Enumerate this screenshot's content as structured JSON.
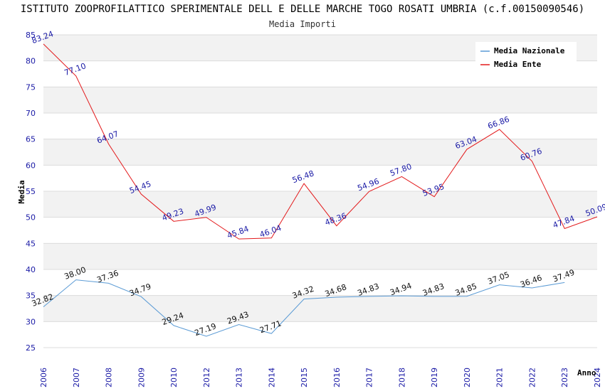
{
  "chart_data": {
    "type": "line",
    "title": "ISTITUTO ZOOPROFILATTICO SPERIMENTALE DELL E DELLE MARCHE TOGO ROSATI UMBRIA (c.f.00150090546)",
    "subtitle": "Media Importi",
    "xlabel": "Anno",
    "ylabel": "Media",
    "ylim": [
      25,
      85
    ],
    "yticks": [
      25,
      30,
      35,
      40,
      45,
      50,
      55,
      60,
      65,
      70,
      75,
      80,
      85
    ],
    "categories": [
      "2006",
      "2007",
      "2008",
      "2009",
      "2010",
      "2012",
      "2013",
      "2014",
      "2015",
      "2016",
      "2017",
      "2018",
      "2019",
      "2020",
      "2021",
      "2022",
      "2023",
      "2024"
    ],
    "series": [
      {
        "name": "Media Nazionale",
        "color": "#5b9bd5",
        "values": [
          32.82,
          38.0,
          37.36,
          34.79,
          29.24,
          27.19,
          29.43,
          27.71,
          34.32,
          34.68,
          34.83,
          34.94,
          34.83,
          34.85,
          37.05,
          36.46,
          37.49,
          null
        ],
        "labels": [
          "32.82",
          "38.00",
          "37.36",
          "34.79",
          "29.24",
          "27.19",
          "29.43",
          "27.71",
          "34.32",
          "34.68",
          "34.83",
          "34.94",
          "34.83",
          "34.85",
          "37.05",
          "36.46",
          "37.49",
          null
        ]
      },
      {
        "name": "Media Ente",
        "color": "#e31a1c",
        "values": [
          83.24,
          77.1,
          64.07,
          54.45,
          49.23,
          49.99,
          45.84,
          46.04,
          56.48,
          48.36,
          54.96,
          57.8,
          53.95,
          63.04,
          66.86,
          60.76,
          47.84,
          50.09
        ],
        "labels": [
          "83.24",
          "77.10",
          "64.07",
          "54.45",
          "49.23",
          "49.99",
          "45.84",
          "46.04",
          "56.48",
          "48.36",
          "54.96",
          "57.80",
          "53.95",
          "63.04",
          "66.86",
          "60.76",
          "47.84",
          "50.09"
        ]
      }
    ],
    "legend_position": "top-right",
    "grid": true
  }
}
